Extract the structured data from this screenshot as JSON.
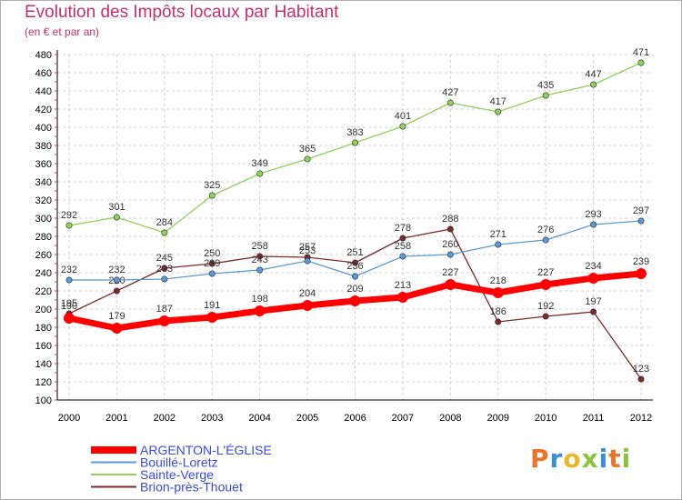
{
  "chart_data": {
    "type": "line",
    "title": "Evolution des Impôts locaux par Habitant",
    "subtitle": "(en € et par an)",
    "categories": [
      "2000",
      "2001",
      "2002",
      "2003",
      "2004",
      "2005",
      "2006",
      "2007",
      "2008",
      "2009",
      "2010",
      "2011",
      "2012"
    ],
    "ylim": [
      100,
      480
    ],
    "yticks": [
      100,
      120,
      140,
      160,
      180,
      200,
      220,
      240,
      260,
      280,
      300,
      320,
      340,
      360,
      380,
      400,
      420,
      440,
      460,
      480
    ],
    "grid": true,
    "legend_position": "bottom-left",
    "series": [
      {
        "name": "ARGENTON-L'ÉGLISE",
        "color": "#ff0000",
        "values": [
          190,
          179,
          187,
          191,
          198,
          204,
          209,
          213,
          227,
          218,
          227,
          234,
          239
        ]
      },
      {
        "name": "Bouillé-Loretz",
        "color": "#5b9bd5",
        "values": [
          232,
          232,
          233,
          239,
          243,
          253,
          236,
          258,
          260,
          271,
          276,
          293,
          297
        ]
      },
      {
        "name": "Sainte-Verge",
        "color": "#8fd15a",
        "values": [
          292,
          301,
          284,
          325,
          349,
          365,
          383,
          401,
          427,
          417,
          435,
          447,
          471
        ]
      },
      {
        "name": "Brion-près-Thouet",
        "color": "#7b2a2a",
        "values": [
          195,
          220,
          245,
          250,
          258,
          257,
          251,
          278,
          288,
          186,
          192,
          197,
          123
        ]
      }
    ]
  },
  "logo": {
    "text": "Proxiti"
  }
}
